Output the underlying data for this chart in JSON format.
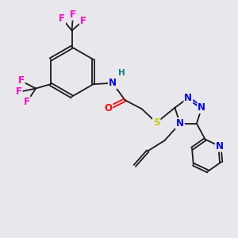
{
  "bg_color": "#e8e8ec",
  "bond_color": "#1a1a1a",
  "bond_width": 1.3,
  "atom_colors": {
    "N": "#0000ff",
    "O": "#ff0000",
    "S": "#cccc00",
    "F": "#ff00cc",
    "H": "#008080",
    "C": "#1a1a1a"
  },
  "font_size": 8.5
}
